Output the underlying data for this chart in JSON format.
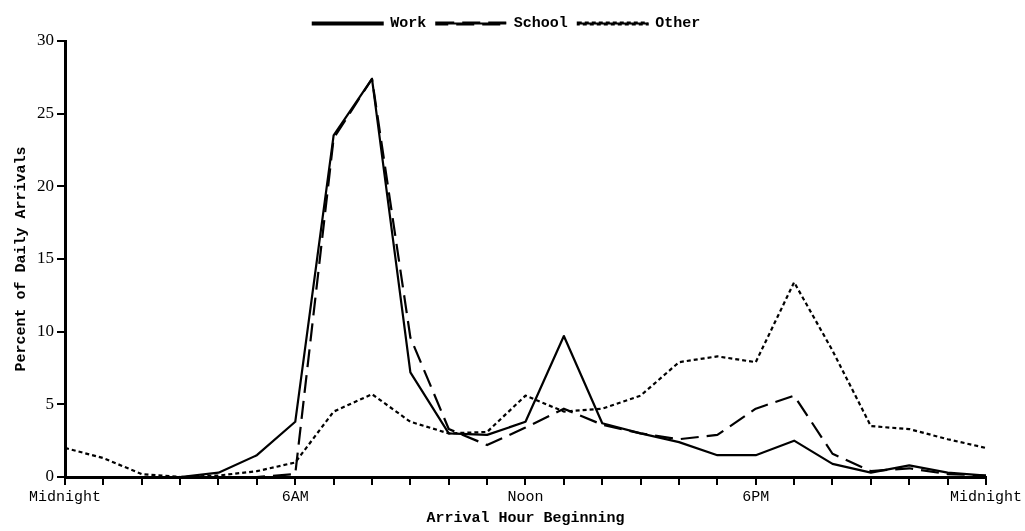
{
  "chart_data": {
    "type": "line",
    "xlabel": "Arrival Hour Beginning",
    "ylabel": "Percent of Daily Arrivals",
    "categories": [
      "Midnight",
      null,
      null,
      null,
      null,
      null,
      "6AM",
      null,
      null,
      null,
      null,
      null,
      "Noon",
      null,
      null,
      null,
      null,
      null,
      "6PM",
      null,
      null,
      null,
      null,
      null,
      "Midnight"
    ],
    "ylim": [
      0,
      30
    ],
    "yticks": [
      0,
      5,
      10,
      15,
      20,
      25,
      30
    ],
    "grid": false,
    "legend": "top",
    "marker": "none",
    "series": [
      {
        "name": "Work",
        "color": "#000000",
        "line_style": "solid",
        "values": [
          0,
          0,
          0,
          0,
          0.3,
          1.5,
          3.8,
          23.5,
          27.4,
          7.2,
          3.0,
          2.9,
          3.8,
          9.7,
          3.7,
          3.0,
          2.4,
          1.5,
          1.5,
          2.5,
          0.9,
          0.3,
          0.8,
          0.3,
          0.1
        ]
      },
      {
        "name": "School",
        "color": "#000000",
        "line_style": "dashed",
        "values": [
          0,
          0,
          0,
          0,
          0,
          0,
          0.2,
          23.3,
          27.4,
          9.6,
          3.3,
          2.2,
          3.4,
          4.7,
          3.6,
          3.0,
          2.6,
          2.9,
          4.7,
          5.6,
          1.6,
          0.4,
          0.6,
          0.2,
          0.1
        ]
      },
      {
        "name": "Other",
        "color": "#000000",
        "line_style": "dotted",
        "values": [
          2.0,
          1.3,
          0.2,
          0,
          0.1,
          0.4,
          1.0,
          4.5,
          5.7,
          3.8,
          3.0,
          3.1,
          5.6,
          4.5,
          4.7,
          5.6,
          7.9,
          8.3,
          7.9,
          13.4,
          8.7,
          3.5,
          3.3,
          2.6,
          2.0
        ]
      }
    ]
  }
}
